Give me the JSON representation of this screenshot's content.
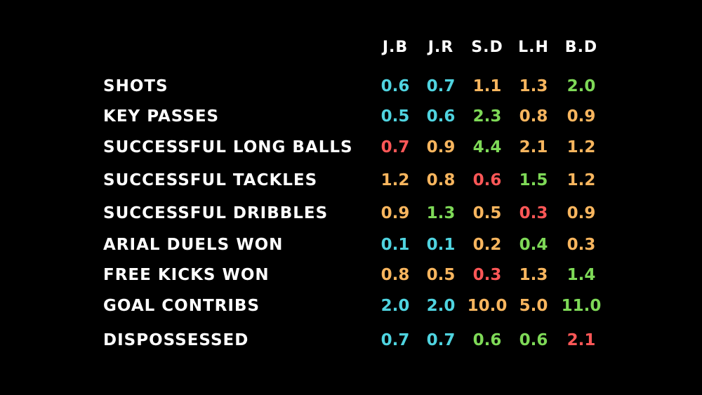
{
  "chart_data": {
    "type": "table",
    "columns": [
      "J.B",
      "J.R",
      "S.D",
      "L.H",
      "B.D"
    ],
    "rows": [
      {
        "label": "SHOTS",
        "values": [
          "0.6",
          "0.7",
          "1.1",
          "1.3",
          "2.0"
        ],
        "colors": [
          "cyan",
          "cyan",
          "orange",
          "orange",
          "green"
        ]
      },
      {
        "label": "KEY PASSES",
        "values": [
          "0.5",
          "0.6",
          "2.3",
          "0.8",
          "0.9"
        ],
        "colors": [
          "cyan",
          "cyan",
          "green",
          "orange",
          "orange"
        ]
      },
      {
        "label": "SUCCESSFUL LONG BALLS",
        "values": [
          "0.7",
          "0.9",
          "4.4",
          "2.1",
          "1.2"
        ],
        "colors": [
          "red",
          "orange",
          "green",
          "orange",
          "orange"
        ]
      },
      {
        "label": "SUCCESSFUL TACKLES",
        "values": [
          "1.2",
          "0.8",
          "0.6",
          "1.5",
          "1.2"
        ],
        "colors": [
          "orange",
          "orange",
          "red",
          "green",
          "orange"
        ]
      },
      {
        "label": "SUCCESSFUL DRIBBLES",
        "values": [
          "0.9",
          "1.3",
          "0.5",
          "0.3",
          "0.9"
        ],
        "colors": [
          "orange",
          "green",
          "orange",
          "red",
          "orange"
        ]
      },
      {
        "label": "ARIAL DUELS WON",
        "values": [
          "0.1",
          "0.1",
          "0.2",
          "0.4",
          "0.3"
        ],
        "colors": [
          "cyan",
          "cyan",
          "orange",
          "green",
          "orange"
        ]
      },
      {
        "label": "FREE KICKS WON",
        "values": [
          "0.8",
          "0.5",
          "0.3",
          "1.3",
          "1.4"
        ],
        "colors": [
          "orange",
          "orange",
          "red",
          "orange",
          "green"
        ]
      },
      {
        "label": "GOAL CONTRIBS",
        "values": [
          "2.0",
          "2.0",
          "10.0",
          "5.0",
          "11.0"
        ],
        "colors": [
          "cyan",
          "cyan",
          "orange",
          "orange",
          "green"
        ]
      },
      {
        "label": "DISPOSSESSED",
        "values": [
          "0.7",
          "0.7",
          "0.6",
          "0.6",
          "2.1"
        ],
        "colors": [
          "cyan",
          "cyan",
          "green",
          "green",
          "red"
        ]
      }
    ]
  },
  "palette": {
    "background": "#000000",
    "text": "#ffffff",
    "cyan": "#4fd3df",
    "orange": "#f7b55e",
    "green": "#7ed957",
    "red": "#ff5757"
  }
}
